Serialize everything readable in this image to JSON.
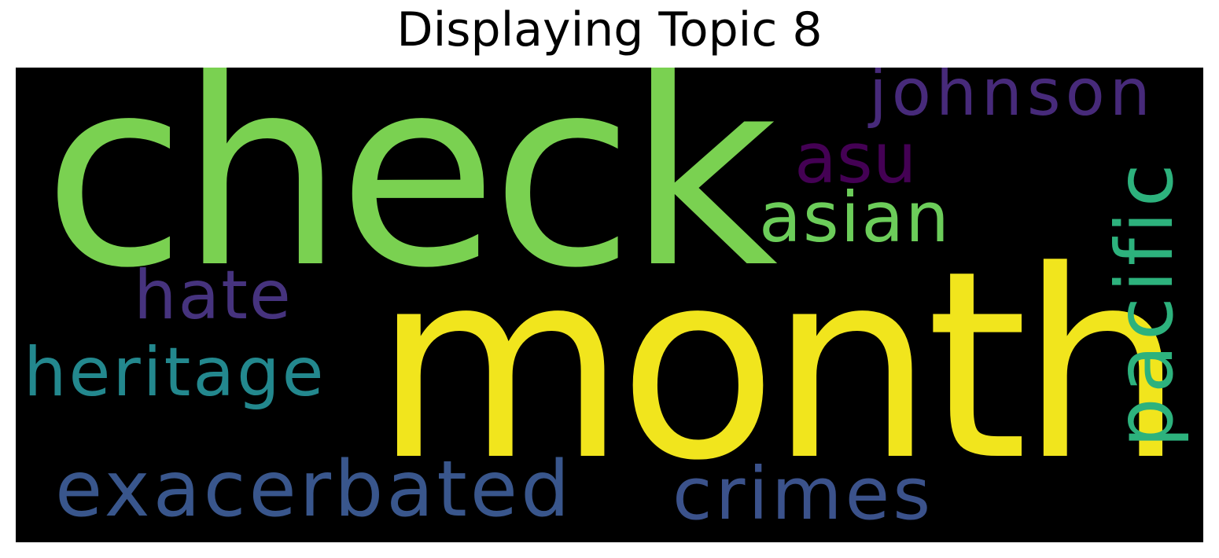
{
  "chart_data": {
    "type": "wordcloud",
    "title": "Displaying Topic 8",
    "background": "#000000",
    "words": [
      {
        "text": "check",
        "color": "#7ad151",
        "orientation": "horizontal"
      },
      {
        "text": "month",
        "color": "#f1e51d",
        "orientation": "horizontal"
      },
      {
        "text": "asu",
        "color": "#440154",
        "orientation": "horizontal"
      },
      {
        "text": "johnson",
        "color": "#472a7a",
        "orientation": "horizontal"
      },
      {
        "text": "asian",
        "color": "#6ccd5a",
        "orientation": "horizontal"
      },
      {
        "text": "pacific",
        "color": "#2db27d",
        "orientation": "vertical"
      },
      {
        "text": "hate",
        "color": "#46337e",
        "orientation": "horizontal"
      },
      {
        "text": "heritage",
        "color": "#23888e",
        "orientation": "horizontal"
      },
      {
        "text": "exacerbated",
        "color": "#39568c",
        "orientation": "horizontal"
      },
      {
        "text": "crimes",
        "color": "#3b528b",
        "orientation": "horizontal"
      }
    ]
  }
}
